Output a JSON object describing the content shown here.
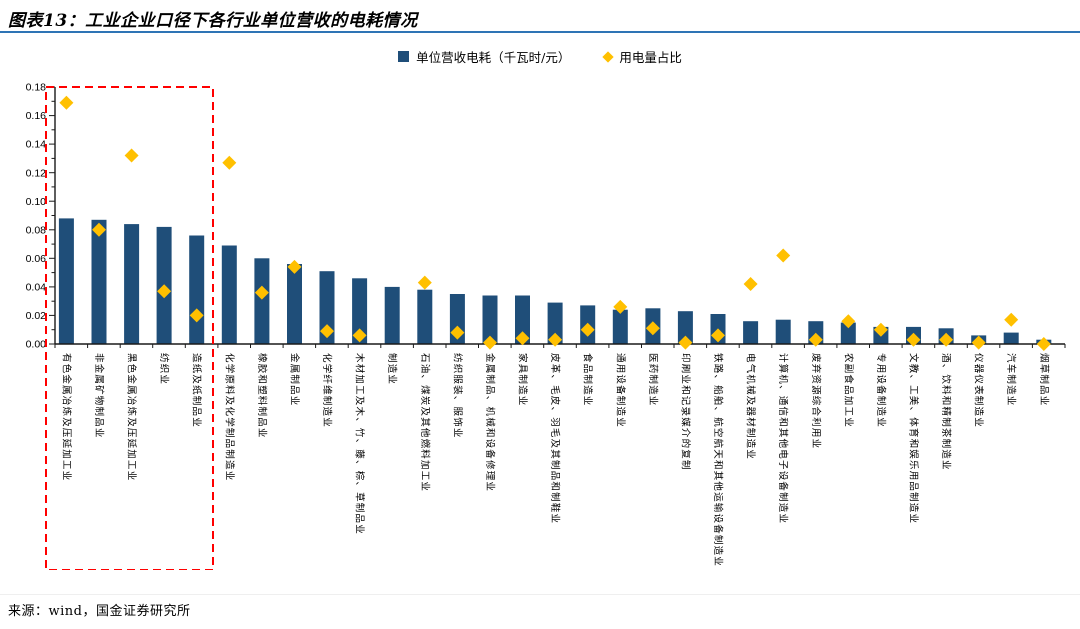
{
  "header": {
    "title": "图表13：工业企业口径下各行业单位营收的电耗情况"
  },
  "footer": {
    "source": "来源：wind，国金证券研究所"
  },
  "colors": {
    "bar": "#1F4E79",
    "marker": "#FFC000",
    "title_rule": "#2E74B5",
    "highlight": "#FF0000"
  },
  "chart_data": {
    "type": "bar",
    "title": "工业企业口径下各行业单位营收的电耗情况",
    "xlabel": "",
    "ylabel": "",
    "ylim": [
      0,
      0.18
    ],
    "ytick_step": 0.02,
    "grid": false,
    "legend_position": "top",
    "categories": [
      "有色金属冶炼及压延加工业",
      "非金属矿物制品业",
      "黑色金属冶炼及压延加工业",
      "纺织业",
      "造纸及纸制品业",
      "化学原料及化学制品制造业",
      "橡胶和塑料制品业",
      "金属制品业",
      "化学纤维制造业",
      "木材加工及木、竹、藤、棕、草制品业",
      "制造业",
      "石油、煤炭及其他燃料加工业",
      "纺织服装、服饰业",
      "金属制品、机械和设备修理业",
      "家具制造业",
      "皮革、毛皮、羽毛及其制品和制鞋业",
      "食品制造业",
      "通用设备制造业",
      "医药制造业",
      "印刷业和记录媒介的复制",
      "铁路、船舶、航空航天和其他运输设备制造业",
      "电气机械及器材制造业",
      "计算机、通信和其他电子设备制造业",
      "废弃资源综合利用业",
      "农副食品加工业",
      "专用设备制造业",
      "文教、工美、体育和娱乐用品制造业",
      "酒、饮料和精制茶制造业",
      "仪器仪表制造业",
      "汽车制造业",
      "烟草制品业"
    ],
    "series": [
      {
        "name": "单位营收电耗（千瓦时/元）",
        "type": "bar",
        "color": "#1F4E79",
        "values": [
          0.088,
          0.087,
          0.084,
          0.082,
          0.076,
          0.069,
          0.06,
          0.056,
          0.051,
          0.046,
          0.04,
          0.038,
          0.035,
          0.034,
          0.034,
          0.029,
          0.027,
          0.024,
          0.025,
          0.023,
          0.021,
          0.016,
          0.017,
          0.016,
          0.015,
          0.012,
          0.012,
          0.011,
          0.006,
          0.008,
          0.003
        ]
      },
      {
        "name": "用电量占比",
        "type": "scatter",
        "marker": "diamond",
        "color": "#FFC000",
        "values": [
          0.169,
          0.08,
          0.132,
          0.037,
          0.02,
          0.127,
          0.036,
          0.054,
          0.009,
          0.006,
          null,
          0.043,
          0.008,
          0.001,
          0.004,
          0.003,
          0.01,
          0.026,
          0.011,
          0.001,
          0.006,
          0.042,
          0.062,
          0.003,
          0.016,
          0.01,
          0.003,
          0.003,
          0.001,
          0.017,
          0.0
        ]
      }
    ],
    "highlight_box": {
      "categories_from": 0,
      "categories_to": 4,
      "style": "red-dashed"
    }
  }
}
